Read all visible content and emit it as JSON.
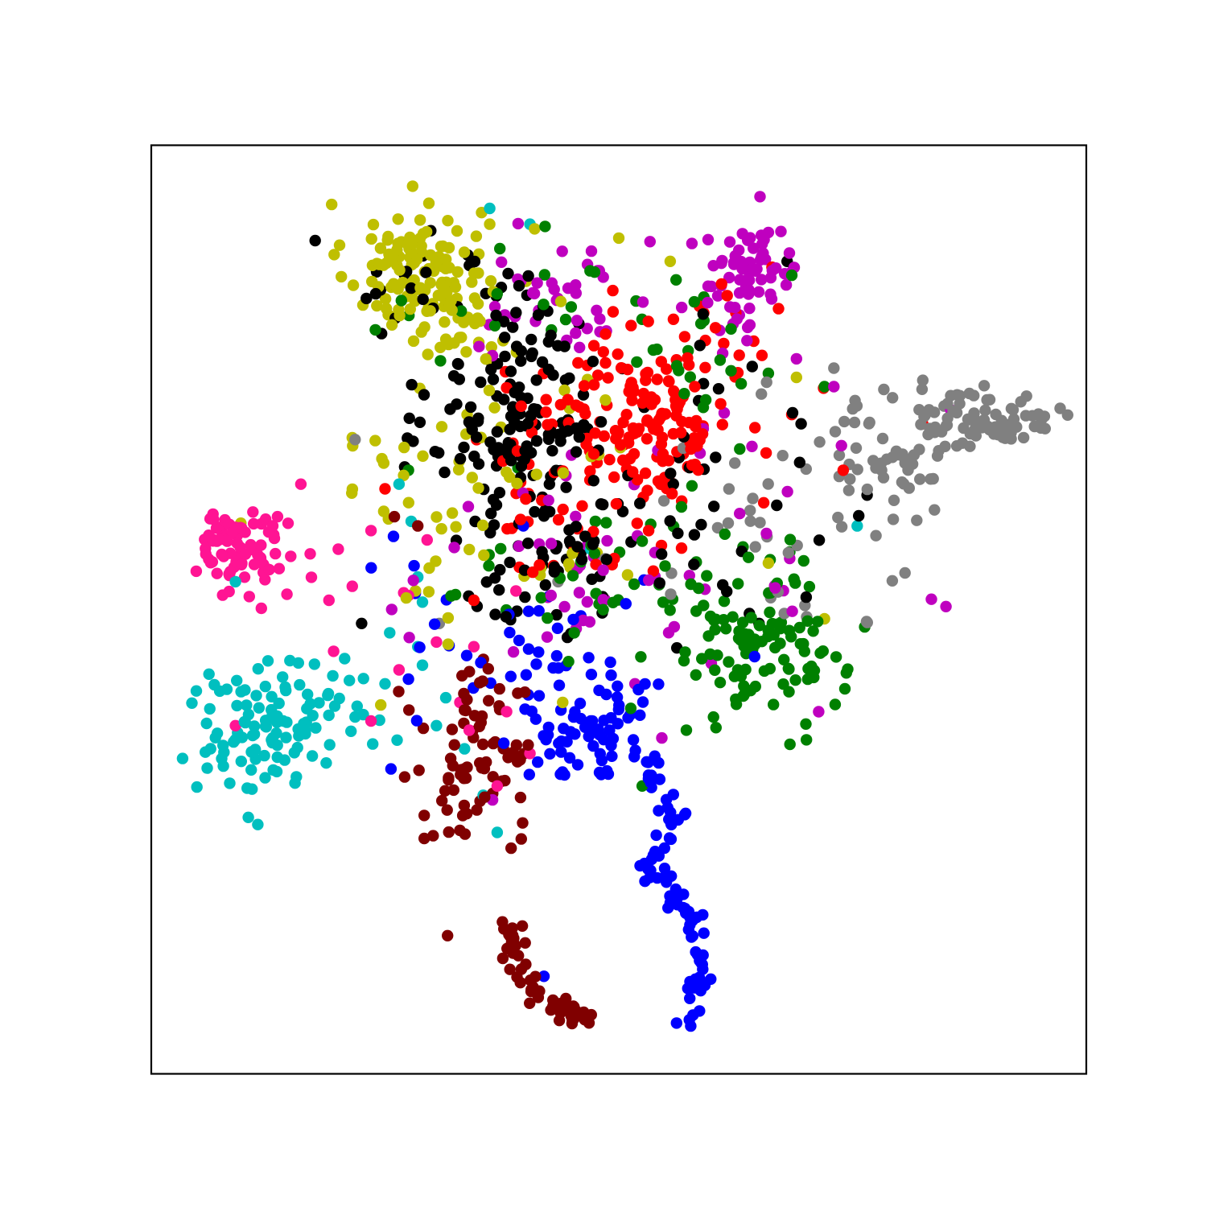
{
  "chart_data": {
    "type": "scatter",
    "title": "",
    "xlabel": "",
    "ylabel": "",
    "xlim": [
      0,
      100
    ],
    "ylim": [
      0,
      100
    ],
    "grid": false,
    "axis_ticks": false,
    "legend": "none",
    "marker_radius_units": 0.62,
    "series": [
      {
        "color": "#bfbf00",
        "clusters": [
          {
            "cx": 28.0,
            "cy": 87.0,
            "sx": 3.6,
            "sy": 3.4,
            "n": 110
          },
          {
            "cx": 33.5,
            "cy": 81.0,
            "sx": 3.2,
            "sy": 2.8,
            "n": 35
          },
          {
            "cx": 35.0,
            "cy": 63.0,
            "sx": 9.0,
            "sy": 9.0,
            "n": 60
          }
        ],
        "extra_points": [
          [
            36.2,
            91.5
          ],
          [
            41.0,
            91.0
          ],
          [
            50.0,
            90.0
          ],
          [
            55.5,
            87.5
          ],
          [
            21.5,
            68.5
          ],
          [
            44.0,
            40.0
          ],
          [
            69.0,
            75.0
          ],
          [
            66.0,
            55.0
          ],
          [
            72.0,
            49.0
          ]
        ]
      },
      {
        "color": "#000000",
        "clusters": [
          {
            "cx": 40.0,
            "cy": 70.0,
            "sx": 5.0,
            "sy": 5.5,
            "n": 130
          },
          {
            "cx": 42.0,
            "cy": 56.0,
            "sx": 5.0,
            "sy": 4.0,
            "n": 55
          },
          {
            "cx": 35.5,
            "cy": 85.0,
            "sx": 7.0,
            "sy": 3.0,
            "n": 30
          },
          {
            "cx": 59.0,
            "cy": 62.0,
            "sx": 10.0,
            "sy": 9.0,
            "n": 40
          }
        ],
        "extra_points": [
          [
            24.0,
            84.0
          ],
          [
            23.0,
            83.5
          ],
          [
            68.0,
            87.5
          ],
          [
            69.5,
            70.0
          ],
          [
            65.0,
            48.5
          ],
          [
            22.5,
            48.5
          ],
          [
            44.5,
            47.0
          ]
        ]
      },
      {
        "color": "#ff0000",
        "clusters": [
          {
            "cx": 54.0,
            "cy": 70.0,
            "sx": 4.0,
            "sy": 3.5,
            "n": 110
          },
          {
            "cx": 45.0,
            "cy": 66.0,
            "sx": 5.5,
            "sy": 6.0,
            "n": 70
          },
          {
            "cx": 58.0,
            "cy": 78.0,
            "sx": 6.0,
            "sy": 3.5,
            "n": 30
          }
        ],
        "extra_points": [
          [
            82.5,
            70.0
          ],
          [
            74.0,
            65.0
          ],
          [
            65.5,
            61.5
          ],
          [
            68.5,
            71.0
          ],
          [
            25.0,
            63.0
          ],
          [
            34.5,
            51.0
          ]
        ]
      },
      {
        "color": "#808080",
        "clusters": [
          {
            "cx": 89.5,
            "cy": 70.5,
            "sx": 3.5,
            "sy": 1.6,
            "n": 80
          },
          {
            "cx": 79.0,
            "cy": 67.5,
            "sx": 4.0,
            "sy": 3.5,
            "n": 45
          },
          {
            "cx": 67.0,
            "cy": 59.0,
            "sx": 8.0,
            "sy": 6.0,
            "n": 40
          }
        ],
        "extra_points": [
          [
            30.8,
            48.5
          ],
          [
            21.8,
            68.3
          ],
          [
            73.0,
            76.0
          ],
          [
            43.5,
            53.0
          ]
        ]
      },
      {
        "color": "#bf00bf",
        "clusters": [
          {
            "cx": 64.0,
            "cy": 86.0,
            "sx": 3.0,
            "sy": 3.0,
            "n": 70
          },
          {
            "cx": 45.0,
            "cy": 83.0,
            "sx": 4.5,
            "sy": 3.5,
            "n": 40
          },
          {
            "cx": 50.0,
            "cy": 55.0,
            "sx": 12.0,
            "sy": 7.0,
            "n": 60
          }
        ],
        "extra_points": [
          [
            73.0,
            74.0
          ],
          [
            69.0,
            77.0
          ],
          [
            85.5,
            71.5
          ],
          [
            36.5,
            29.5
          ],
          [
            44.2,
            50.3
          ]
        ]
      },
      {
        "color": "#008000",
        "clusters": [
          {
            "cx": 66.0,
            "cy": 45.0,
            "sx": 4.0,
            "sy": 3.5,
            "n": 90
          },
          {
            "cx": 52.0,
            "cy": 53.0,
            "sx": 9.0,
            "sy": 6.0,
            "n": 60
          },
          {
            "cx": 58.0,
            "cy": 78.0,
            "sx": 5.0,
            "sy": 5.0,
            "n": 25
          },
          {
            "cx": 36.0,
            "cy": 84.0,
            "sx": 6.0,
            "sy": 3.0,
            "n": 15
          }
        ],
        "extra_points": [
          [
            68.5,
            86.0
          ],
          [
            72.0,
            74.0
          ],
          [
            27.5,
            65.0
          ],
          [
            52.5,
            31.0
          ],
          [
            63.5,
            41.0
          ]
        ]
      },
      {
        "color": "#0000ff",
        "clusters": [
          {
            "cx": 47.5,
            "cy": 37.0,
            "sx": 3.5,
            "sy": 3.0,
            "n": 60
          },
          {
            "cx": 41.0,
            "cy": 45.0,
            "sx": 9.0,
            "sy": 6.0,
            "n": 50
          }
        ],
        "curve_points": [
          [
            57.0,
            5.5
          ],
          [
            58.0,
            8.0
          ],
          [
            58.5,
            10.5
          ],
          [
            59.0,
            13.0
          ],
          [
            58.5,
            15.5
          ],
          [
            57.0,
            18.0
          ],
          [
            55.0,
            20.5
          ],
          [
            53.0,
            23.0
          ],
          [
            55.0,
            26.0
          ],
          [
            56.5,
            28.5
          ],
          [
            54.0,
            31.0
          ],
          [
            52.5,
            34.0
          ]
        ],
        "curve_n": 90,
        "curve_sx": 0.6,
        "curve_sy": 0.6,
        "extra_points": [
          [
            27.5,
            42.5
          ],
          [
            42.0,
            10.5
          ],
          [
            49.0,
            37.0
          ],
          [
            47.0,
            38.0
          ]
        ]
      },
      {
        "color": "#800000",
        "clusters": [
          {
            "cx": 35.5,
            "cy": 32.5,
            "sx": 3.0,
            "sy": 4.5,
            "n": 60
          },
          {
            "cx": 34.0,
            "cy": 40.5,
            "sx": 3.0,
            "sy": 2.5,
            "n": 20
          }
        ],
        "curve_points": [
          [
            38.0,
            15.5
          ],
          [
            39.0,
            12.5
          ],
          [
            40.0,
            10.0
          ],
          [
            42.0,
            8.0
          ],
          [
            44.5,
            6.3
          ],
          [
            47.0,
            5.7
          ]
        ],
        "curve_n": 55,
        "curve_sx": 0.7,
        "curve_sy": 0.7,
        "extra_points": [
          [
            26.0,
            60.0
          ],
          [
            28.5,
            59.0
          ]
        ]
      },
      {
        "color": "#ff1493",
        "clusters": [
          {
            "cx": 8.5,
            "cy": 57.0,
            "sx": 2.0,
            "sy": 1.8,
            "n": 55
          },
          {
            "cx": 12.5,
            "cy": 55.0,
            "sx": 2.5,
            "sy": 2.5,
            "n": 25
          }
        ],
        "extra_points": [
          [
            21.5,
            52.5
          ],
          [
            23.5,
            58.5
          ],
          [
            20.0,
            56.5
          ],
          [
            19.0,
            51.0
          ],
          [
            19.5,
            45.5
          ],
          [
            27.5,
            51.5
          ],
          [
            30.5,
            46.5
          ],
          [
            33.0,
            40.0
          ],
          [
            34.5,
            46.0
          ],
          [
            34.0,
            37.0
          ],
          [
            37.0,
            31.0
          ],
          [
            38.0,
            39.0
          ],
          [
            16.0,
            63.5
          ],
          [
            13.5,
            60.0
          ],
          [
            9.0,
            37.5
          ],
          [
            23.5,
            38.0
          ],
          [
            26.5,
            43.5
          ],
          [
            29.5,
            57.5
          ],
          [
            40.5,
            34.5
          ],
          [
            39.0,
            52.0
          ],
          [
            27.0,
            51.8
          ],
          [
            17.0,
            56.0
          ]
        ]
      },
      {
        "color": "#00bfbf",
        "clusters": [
          {
            "cx": 11.5,
            "cy": 37.0,
            "sx": 3.0,
            "sy": 4.0,
            "n": 90
          },
          {
            "cx": 19.0,
            "cy": 40.0,
            "sx": 3.0,
            "sy": 2.5,
            "n": 25
          }
        ],
        "extra_points": [
          [
            25.5,
            47.5
          ],
          [
            28.5,
            53.5
          ],
          [
            26.5,
            63.5
          ],
          [
            27.8,
            59.5
          ],
          [
            29.0,
            50.8
          ],
          [
            29.0,
            44.0
          ],
          [
            33.5,
            35.0
          ],
          [
            35.5,
            30.0
          ],
          [
            37.0,
            26.0
          ],
          [
            9.0,
            53.0
          ],
          [
            75.5,
            59.0
          ],
          [
            40.5,
            91.5
          ],
          [
            36.2,
            93.2
          ],
          [
            28.5,
            46.0
          ],
          [
            30.5,
            37.5
          ],
          [
            31.5,
            40.5
          ],
          [
            25.0,
            42.0
          ],
          [
            47.0,
            56.5
          ]
        ]
      }
    ]
  }
}
